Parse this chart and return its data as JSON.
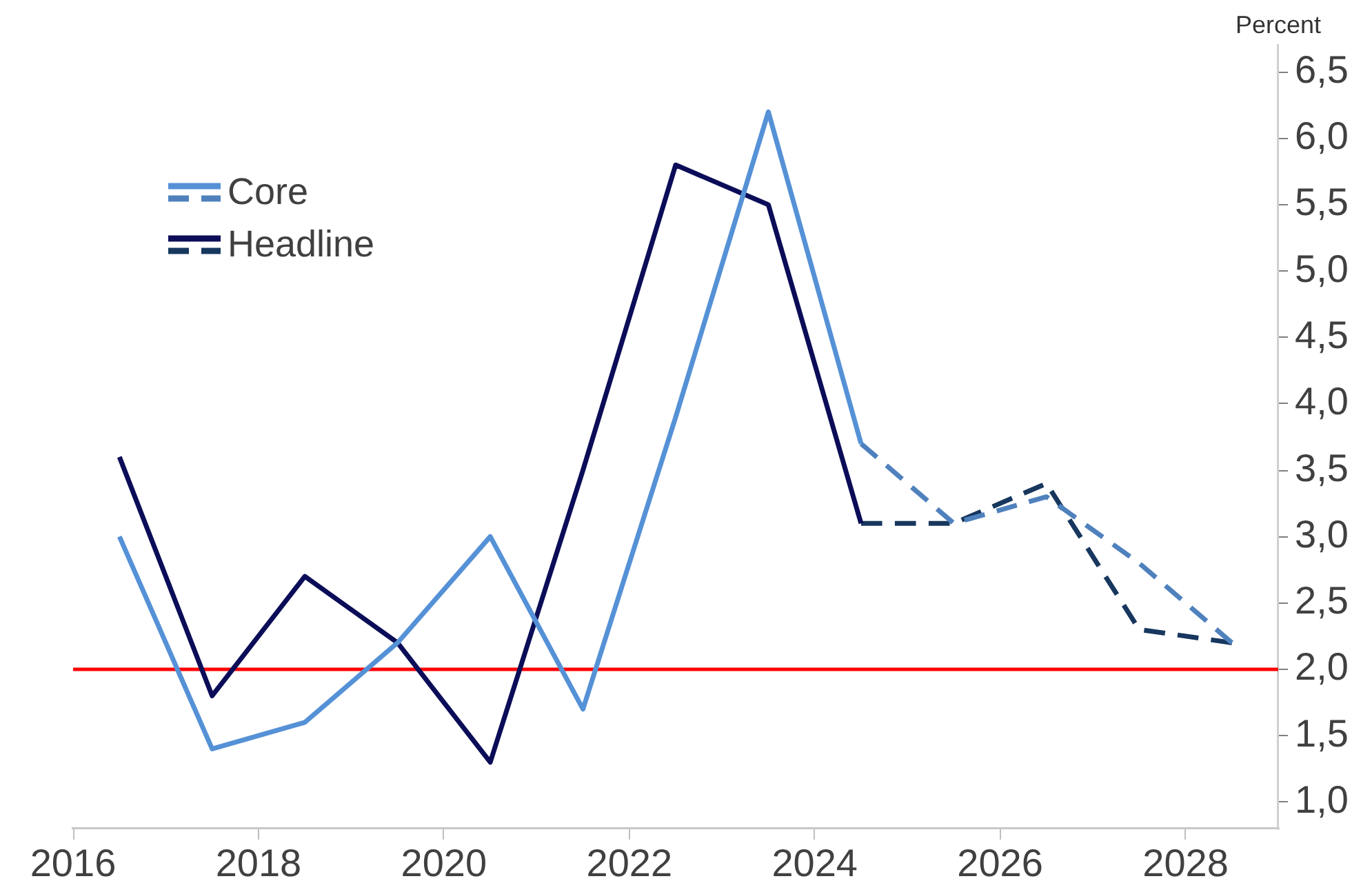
{
  "chart_data": {
    "type": "line",
    "ylabel": "Percent",
    "x": [
      2016.5,
      2017.5,
      2018.5,
      2019.5,
      2020.5,
      2021.5,
      2022.5,
      2023.5,
      2024.5,
      2025.5,
      2026.5,
      2027.5,
      2028.5
    ],
    "xlim": [
      2016,
      2029
    ],
    "xticks": [
      2016,
      2018,
      2020,
      2022,
      2024,
      2026,
      2028
    ],
    "ylim": [
      0.8,
      6.7
    ],
    "yticks": [
      {
        "value": 1,
        "label": "1,0"
      },
      {
        "value": 1.5,
        "label": "1,5"
      },
      {
        "value": 2,
        "label": "2,0"
      },
      {
        "value": 2.5,
        "label": "2,5"
      },
      {
        "value": 3,
        "label": "3,0"
      },
      {
        "value": 3.5,
        "label": "3,5"
      },
      {
        "value": 4,
        "label": "4,0"
      },
      {
        "value": 4.5,
        "label": "4,5"
      },
      {
        "value": 5,
        "label": "5,0"
      },
      {
        "value": 5.5,
        "label": "5,5"
      },
      {
        "value": 6,
        "label": "6,0"
      },
      {
        "value": 6.5,
        "label": "6,5"
      }
    ],
    "series": [
      {
        "name": "Core",
        "color": "#5591d6",
        "line_style": "solid",
        "values": [
          3.0,
          1.4,
          1.6,
          2.2,
          3.0,
          1.7,
          3.9,
          6.2,
          3.7,
          null,
          null,
          null,
          null
        ]
      },
      {
        "color": "#4f81bd",
        "line_style": "dashed",
        "values": [
          null,
          null,
          null,
          null,
          null,
          null,
          null,
          null,
          3.7,
          3.1,
          3.3,
          2.8,
          2.2
        ]
      },
      {
        "name": "Headline",
        "color": "#0b0d58",
        "line_style": "solid",
        "values": [
          3.6,
          1.8,
          2.7,
          2.2,
          1.3,
          3.5,
          5.8,
          5.5,
          3.1,
          null,
          null,
          null,
          null
        ]
      },
      {
        "color": "#17375e",
        "line_style": "dashed",
        "values": [
          null,
          null,
          null,
          null,
          null,
          null,
          null,
          null,
          3.1,
          3.1,
          3.4,
          2.3,
          2.2
        ]
      }
    ],
    "ref_lines": [
      {
        "axis": "y",
        "value": 2,
        "color": "#ff0000"
      }
    ],
    "legend": "top left"
  }
}
